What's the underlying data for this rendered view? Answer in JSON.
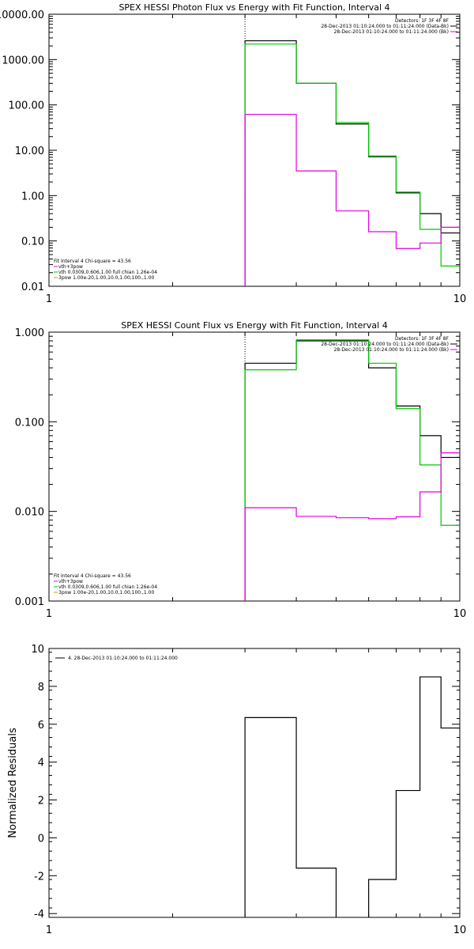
{
  "chart_data": [
    {
      "type": "line",
      "title": "SPEX HESSI Photon Flux vs Energy with Fit Function, Interval 4",
      "xlim": [
        1,
        10
      ],
      "ylim": [
        0.01,
        10000
      ],
      "yscale": "log",
      "xscale": "log",
      "xticks": [
        "1",
        "10"
      ],
      "yticks": [
        {
          "v": 0.01,
          "label": "0.01"
        },
        {
          "v": 0.1,
          "label": "0.10"
        },
        {
          "v": 1,
          "label": "1.00"
        },
        {
          "v": 10,
          "label": "10.00"
        },
        {
          "v": 100,
          "label": "100.00"
        },
        {
          "v": 1000,
          "label": "1000.00"
        },
        {
          "v": 10000,
          "label": "10000.00"
        }
      ],
      "vline": 3,
      "info_right": [
        "Detectors: 1F 3F 4F 8F",
        "28-Dec-2013 01:10:24.000 to 01:11:24.000 (Data-Bk)",
        "28-Dec-2013 01:10:24.000 to 01:11:24.000 (Bk)"
      ],
      "info_left": [
        "Fit Interval  4   Chi-square = 43.56",
        "vth+3pow",
        "vth 0.0309,0.606,1.00  full chian 1.26e-04",
        "3pow 1.00e-20,1.00,10.0,1.00,100.,1.00"
      ],
      "edges": [
        3,
        4,
        5,
        6,
        7,
        8,
        9,
        10
      ],
      "series": [
        {
          "color": "#000000",
          "values": [
            2600,
            300,
            38,
            7.2,
            1.15,
            0.4,
            0.15
          ]
        },
        {
          "color": "#00c800",
          "values": [
            2200,
            300,
            41,
            7.5,
            1.2,
            0.18,
            0.028
          ]
        },
        {
          "color": "#e000e0",
          "values": [
            62,
            3.5,
            0.46,
            0.16,
            0.068,
            0.09,
            0.2
          ]
        }
      ]
    },
    {
      "type": "line",
      "title": "SPEX HESSI Count Flux vs Energy with Fit Function, Interval 4",
      "xlim": [
        1,
        10
      ],
      "ylim": [
        0.001,
        1
      ],
      "yscale": "log",
      "xscale": "log",
      "xticks": [
        "1",
        "10"
      ],
      "yticks": [
        {
          "v": 0.001,
          "label": "0.001"
        },
        {
          "v": 0.01,
          "label": "0.010"
        },
        {
          "v": 0.1,
          "label": "0.100"
        },
        {
          "v": 1,
          "label": "1.000"
        }
      ],
      "vline": 3,
      "info_right": [
        "Detectors: 1F 3F 4F 8F",
        "28-Dec-2013 01:10:24.000 to 01:11:24.000 (Data-Bk)",
        "28-Dec-2013 01:10:24.000 to 01:11:24.000 (Bk)"
      ],
      "info_left": [
        "Fit Interval  4   Chi-square = 43.56",
        "vth+3pow",
        "vth 0.0309,0.606,1.00  full chian 1.26e-04",
        "3pow 1.00e-20,1.00,10.0,1.00,100.,1.00"
      ],
      "edges": [
        3,
        4,
        5,
        6,
        7,
        8,
        9,
        10
      ],
      "series": [
        {
          "color": "#000000",
          "values": [
            0.45,
            0.8,
            0.8,
            0.4,
            0.15,
            0.07,
            0.04
          ]
        },
        {
          "color": "#00c800",
          "values": [
            0.38,
            0.82,
            0.82,
            0.45,
            0.14,
            0.033,
            0.007
          ]
        },
        {
          "color": "#e000e0",
          "values": [
            0.011,
            0.0088,
            0.0085,
            0.0083,
            0.0087,
            0.0165,
            0.045
          ]
        }
      ]
    },
    {
      "type": "line",
      "title": "",
      "xlim": [
        1,
        10
      ],
      "ylim": [
        -4.2,
        10
      ],
      "yscale": "linear",
      "xscale": "log",
      "xticks": [
        "1",
        "10"
      ],
      "ylabel": "Normalized  Residuals",
      "yticks": [
        {
          "v": -4,
          "label": "-4"
        },
        {
          "v": -2,
          "label": "-2"
        },
        {
          "v": 0,
          "label": "0"
        },
        {
          "v": 2,
          "label": "2"
        },
        {
          "v": 4,
          "label": "4"
        },
        {
          "v": 6,
          "label": "6"
        },
        {
          "v": 8,
          "label": "8"
        },
        {
          "v": 10,
          "label": "10"
        }
      ],
      "legend": "4. 28-Dec-2013 01:10:24.000 to 01:11:24.000",
      "edges": [
        3,
        4,
        5,
        6,
        7,
        8,
        9,
        10
      ],
      "series": [
        {
          "color": "#000000",
          "values": [
            6.35,
            -1.6,
            -4.3,
            -2.2,
            2.5,
            8.5,
            5.8
          ]
        }
      ]
    }
  ]
}
